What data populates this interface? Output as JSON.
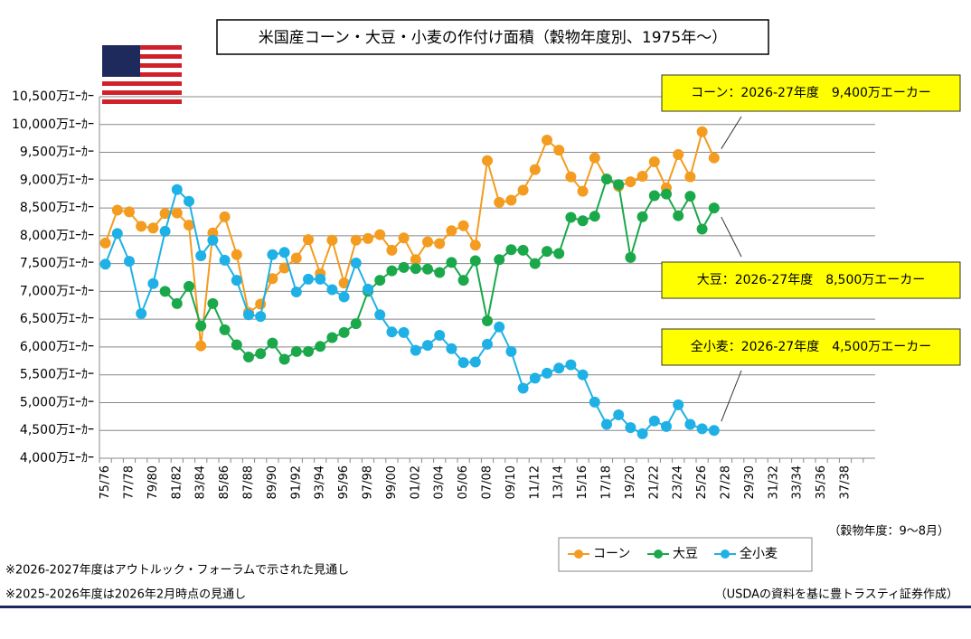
{
  "chart_data": {
    "type": "line",
    "title": "米国産コーン・大豆・小麦の作付け面積（穀物年度別、1975年～）",
    "x_label": "（穀物年度：9～8月）",
    "categories": [
      "75/76",
      null,
      "77/78",
      null,
      "79/80",
      null,
      "81/82",
      null,
      "83/84",
      null,
      "85/86",
      null,
      "87/88",
      null,
      "89/90",
      null,
      "91/92",
      null,
      "93/94",
      null,
      "95/96",
      null,
      "97/98",
      null,
      "99/00",
      null,
      "01/02",
      null,
      "03/04",
      null,
      "05/06",
      null,
      "07/08",
      null,
      "09/10",
      null,
      "11/12",
      null,
      "13/14",
      null,
      "15/16",
      null,
      "17/18",
      null,
      "19/20",
      null,
      "21/22",
      null,
      "23/24",
      null,
      "25/26",
      null,
      "27/28",
      null,
      "29/30",
      null,
      "31/32",
      null,
      "33/34",
      null,
      "35/36",
      null,
      "37/38",
      null,
      null
    ],
    "series": [
      {
        "name": "コーン",
        "color": "#f39c1f",
        "values": [
          7870,
          8460,
          8430,
          8170,
          8140,
          8400,
          8410,
          8190,
          6020,
          8050,
          8340,
          7660,
          6620,
          6770,
          7230,
          7420,
          7600,
          7930,
          7320,
          7920,
          7150,
          7920,
          7950,
          8020,
          7740,
          7960,
          7570,
          7890,
          7860,
          8090,
          8180,
          7830,
          9350,
          8600,
          8640,
          8820,
          9190,
          9720,
          9540,
          9060,
          8800,
          9400,
          9020,
          8890,
          8970,
          9070,
          9330,
          8860,
          9460,
          9060,
          9870,
          9400,
          null,
          null,
          null,
          null,
          null,
          null,
          null,
          null,
          null,
          null,
          null,
          null,
          null
        ]
      },
      {
        "name": "大豆",
        "color": "#1aa84a",
        "values": [
          null,
          null,
          null,
          null,
          null,
          7000,
          6780,
          7090,
          6380,
          6780,
          6310,
          6040,
          5820,
          5880,
          6070,
          5780,
          5920,
          5920,
          6010,
          6170,
          6260,
          6420,
          7000,
          7200,
          7370,
          7430,
          7410,
          7400,
          7340,
          7520,
          7200,
          7550,
          6470,
          7570,
          7750,
          7740,
          7500,
          7720,
          7680,
          8330,
          8270,
          8350,
          9020,
          8920,
          7610,
          8340,
          8720,
          8750,
          8360,
          8710,
          8120,
          8500,
          null,
          null,
          null,
          null,
          null,
          null,
          null,
          null,
          null,
          null,
          null,
          null,
          null
        ]
      },
      {
        "name": "全小麦",
        "color": "#1fb1e6",
        "values": [
          7490,
          8040,
          7540,
          6600,
          7140,
          8080,
          8830,
          8620,
          7640,
          7920,
          7560,
          7200,
          6580,
          6550,
          7660,
          7700,
          6990,
          7220,
          7220,
          7030,
          6900,
          7510,
          7040,
          6580,
          6270,
          6260,
          5940,
          6030,
          6210,
          5970,
          5720,
          5730,
          6050,
          6360,
          5920,
          5260,
          5440,
          5530,
          5620,
          5680,
          5500,
          5010,
          4610,
          4780,
          4550,
          4440,
          4670,
          4570,
          4960,
          4610,
          4530,
          4500,
          null,
          null,
          null,
          null,
          null,
          null,
          null,
          null,
          null,
          null,
          null,
          null,
          null
        ]
      }
    ],
    "ylim": [
      4000,
      10500
    ],
    "yticks": [
      {
        "value": 4000,
        "label": "4,000万ｴｰｶｰ"
      },
      {
        "value": 4500,
        "label": "4,500万ｴｰｶｰ"
      },
      {
        "value": 5000,
        "label": "5,000万ｴｰｶｰ"
      },
      {
        "value": 5500,
        "label": "5,500万ｴｰｶｰ"
      },
      {
        "value": 6000,
        "label": "6,000万ｴｰｶｰ"
      },
      {
        "value": 6500,
        "label": "6,500万ｴｰｶｰ"
      },
      {
        "value": 7000,
        "label": "7,000万ｴｰｶｰ"
      },
      {
        "value": 7500,
        "label": "7,500万ｴｰｶｰ"
      },
      {
        "value": 8000,
        "label": "8,000万ｴｰｶｰ"
      },
      {
        "value": 8500,
        "label": "8,500万ｴｰｶｰ"
      },
      {
        "value": 9000,
        "label": "9,000万ｴｰｶｰ"
      },
      {
        "value": 9500,
        "label": "9,500万ｴｰｶｰ"
      },
      {
        "value": 10000,
        "label": "10,000万ｴｰｶｰ"
      },
      {
        "value": 10500,
        "label": "10,500万ｴｰｶｰ"
      }
    ],
    "grid": true,
    "legend": "bottom-right",
    "annotations": [
      "コーン：2026-27年度　9,400万エーカー",
      "大豆：2026-27年度　8,500万エーカー",
      "全小麦：2026-27年度　4,500万エーカー"
    ],
    "notes": [
      "※2026-2027年度はアウトルック・フォーラムで示された見通し",
      "※2025-2026年度は2026年2月時点の見通し"
    ],
    "source": "（USDAの資料を基に豊トラスティ証券作成）"
  }
}
